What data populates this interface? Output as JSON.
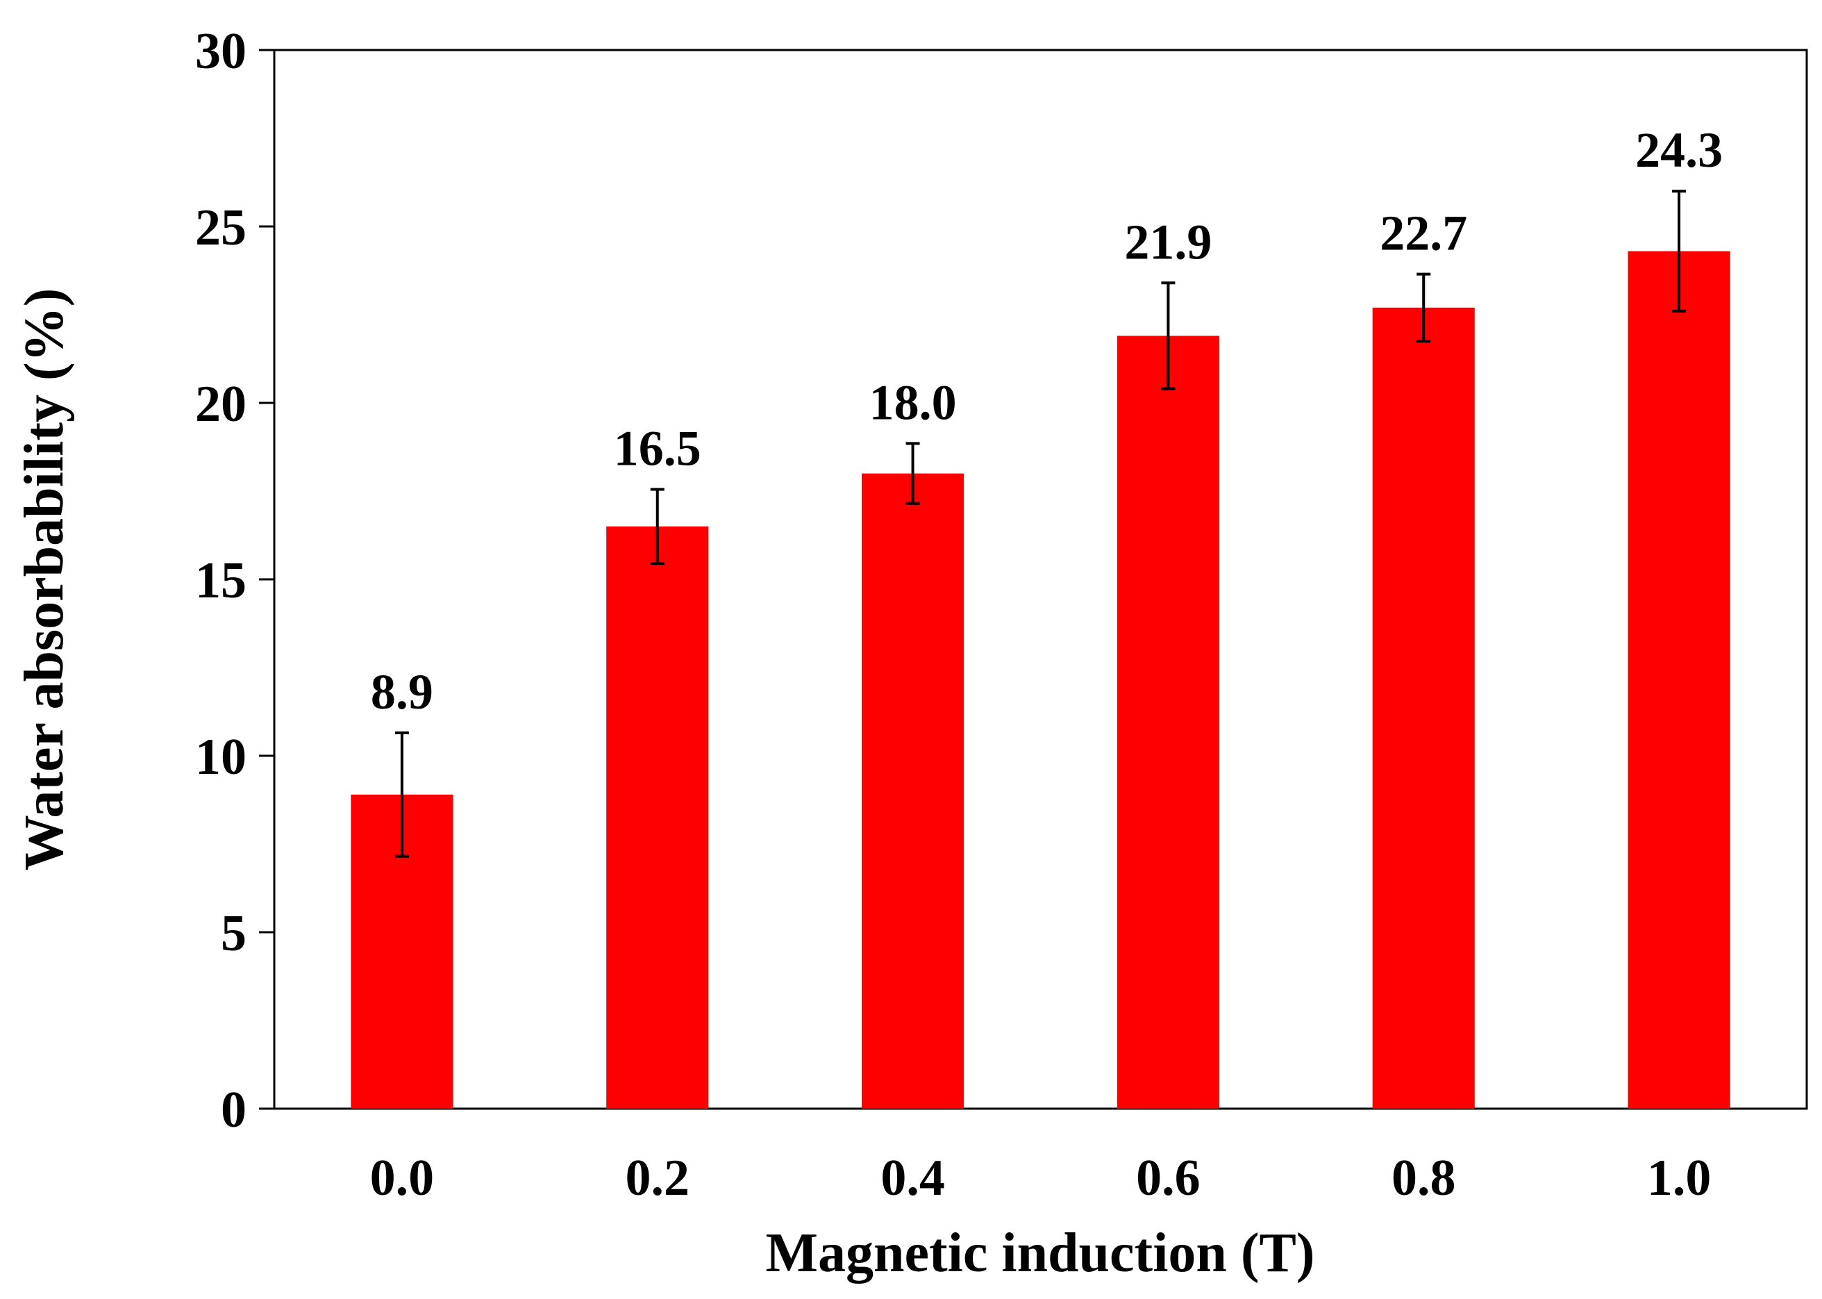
{
  "chart_data": {
    "type": "bar",
    "title": "",
    "xlabel": "Magnetic induction (T)",
    "ylabel": "Water absorbability (%)",
    "categories": [
      "0.0",
      "0.2",
      "0.4",
      "0.6",
      "0.8",
      "1.0"
    ],
    "values": [
      8.9,
      16.5,
      18.0,
      21.9,
      22.7,
      24.3
    ],
    "value_labels": [
      "8.9",
      "16.5",
      "18.0",
      "21.9",
      "22.7",
      "24.3"
    ],
    "errors": [
      1.75,
      1.05,
      0.85,
      1.5,
      0.95,
      1.7
    ],
    "ylim": [
      0,
      30
    ],
    "yticks": [
      0,
      5,
      10,
      15,
      20,
      25,
      30
    ],
    "ytick_labels": [
      "0",
      "5",
      "10",
      "15",
      "20",
      "25",
      "30"
    ],
    "grid": false,
    "legend": "none",
    "bar_color": "#ff0000"
  }
}
